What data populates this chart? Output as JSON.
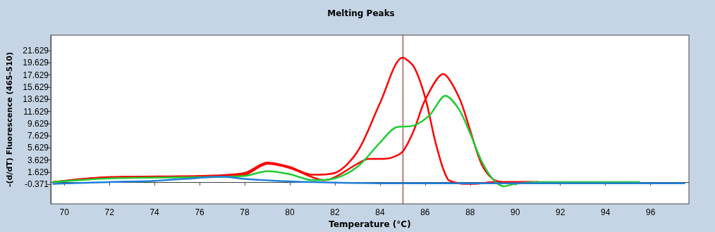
{
  "chart_data": {
    "type": "line",
    "title": "Melting Peaks",
    "xlabel": "Temperature (°C)",
    "ylabel": "-(d/dT) Fluorescence (465-510)",
    "xlim": [
      69.4,
      97.7
    ],
    "xticks": [
      70,
      72,
      74,
      76,
      78,
      80,
      82,
      84,
      86,
      88,
      90,
      92,
      94,
      96
    ],
    "ylim": [
      -3.6,
      24.2
    ],
    "yticks": [
      -0.371,
      1.629,
      3.629,
      5.629,
      7.629,
      9.629,
      11.629,
      13.629,
      15.629,
      17.629,
      19.629,
      21.629
    ],
    "grid": false,
    "marker": "none",
    "line_style": "solid",
    "ref_lines": [
      {
        "axis": "x",
        "value": 85,
        "color": "#8b1a1a"
      }
    ],
    "series": [
      {
        "color": "#1f7fd8",
        "x": [
          69.5,
          72,
          74,
          76,
          77,
          78,
          80,
          82,
          84,
          86,
          90,
          97.5
        ],
        "values": [
          -0.3,
          0,
          0.2,
          0.7,
          0.9,
          0.5,
          0.1,
          -0.1,
          -0.2,
          -0.2,
          -0.2,
          -0.2
        ]
      },
      {
        "color": "#22cc33",
        "x": [
          69.5,
          72,
          76,
          78,
          79,
          80,
          81,
          82,
          83,
          84,
          84.7,
          85.5,
          86.2,
          86.9,
          87.5,
          88,
          88.5,
          89,
          89.5,
          90,
          91,
          95.5
        ],
        "values": [
          0,
          0.6,
          0.8,
          1,
          1.8,
          1.3,
          0.3,
          0.6,
          2.5,
          6.5,
          9,
          9.3,
          11,
          14.2,
          12,
          8,
          3.5,
          0.5,
          -0.7,
          -0.3,
          0,
          0
        ]
      },
      {
        "color": "#ff0000",
        "x": [
          69.5,
          72,
          76,
          78,
          79,
          80,
          81,
          81.5,
          82,
          83,
          83.5,
          84,
          84.5,
          85,
          85.5,
          86,
          86.8,
          87.5,
          88,
          88.5,
          89,
          89.5,
          91
        ],
        "values": [
          0,
          0.8,
          0.9,
          1.2,
          3,
          2.3,
          0.8,
          0.3,
          0.8,
          3,
          3.8,
          3.8,
          4,
          5,
          8.5,
          13.5,
          17.8,
          14,
          8.5,
          3,
          0.5,
          0,
          0
        ]
      },
      {
        "color": "#ff0000",
        "x": [
          69.5,
          72,
          76,
          78,
          79,
          80,
          81,
          82,
          83,
          84,
          85,
          85.5,
          86,
          86.5,
          87,
          87.5,
          88,
          88.5,
          89,
          91
        ],
        "values": [
          0,
          0.8,
          1,
          1.5,
          3.2,
          2.5,
          1.2,
          1.5,
          5,
          13,
          20.5,
          19,
          14,
          6,
          0.5,
          -0.2,
          -0.3,
          -0.2,
          0,
          0
        ]
      }
    ]
  }
}
